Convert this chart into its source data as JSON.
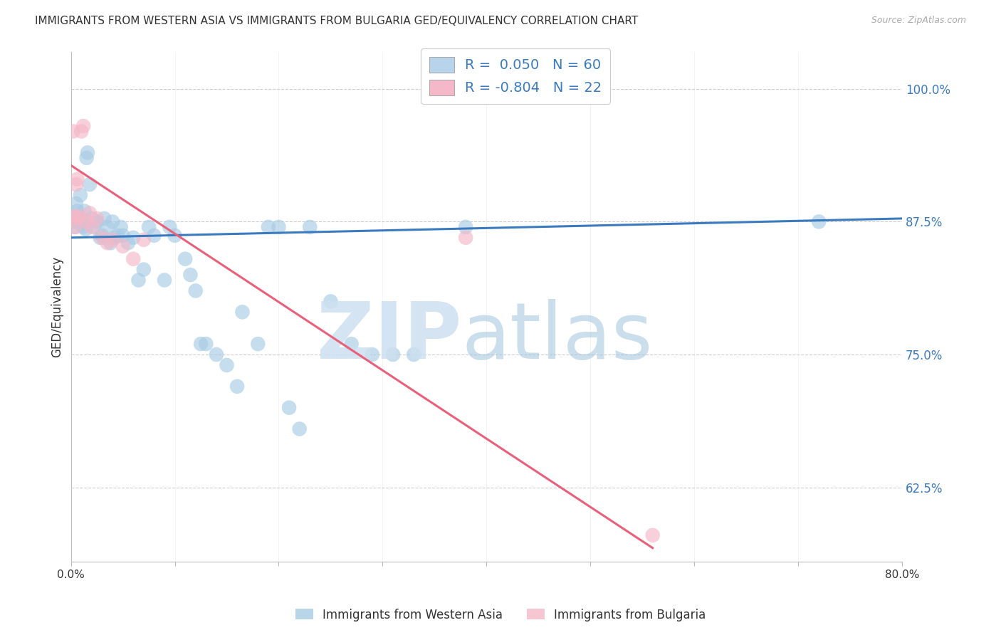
{
  "title": "IMMIGRANTS FROM WESTERN ASIA VS IMMIGRANTS FROM BULGARIA GED/EQUIVALENCY CORRELATION CHART",
  "source": "Source: ZipAtlas.com",
  "ylabel": "GED/Equivalency",
  "ytick_labels": [
    "100.0%",
    "87.5%",
    "75.0%",
    "62.5%"
  ],
  "ytick_values": [
    1.0,
    0.875,
    0.75,
    0.625
  ],
  "xmin": 0.0,
  "xmax": 0.8,
  "ymin": 0.555,
  "ymax": 1.035,
  "blue_color": "#a8cce4",
  "pink_color": "#f4b8c8",
  "blue_line_color": "#3a7abf",
  "pink_line_color": "#e8607a",
  "blue_label": "Immigrants from Western Asia",
  "pink_label": "Immigrants from Bulgaria",
  "blue_dots_x": [
    0.002,
    0.003,
    0.004,
    0.005,
    0.006,
    0.007,
    0.008,
    0.009,
    0.01,
    0.011,
    0.012,
    0.013,
    0.014,
    0.015,
    0.016,
    0.018,
    0.02,
    0.022,
    0.025,
    0.028,
    0.03,
    0.032,
    0.035,
    0.038,
    0.04,
    0.042,
    0.045,
    0.048,
    0.05,
    0.055,
    0.06,
    0.065,
    0.07,
    0.075,
    0.08,
    0.09,
    0.095,
    0.1,
    0.11,
    0.115,
    0.12,
    0.125,
    0.13,
    0.14,
    0.15,
    0.16,
    0.165,
    0.18,
    0.19,
    0.2,
    0.21,
    0.22,
    0.23,
    0.25,
    0.27,
    0.29,
    0.31,
    0.33,
    0.38,
    0.72
  ],
  "blue_dots_y": [
    0.88,
    0.875,
    0.87,
    0.892,
    0.885,
    0.875,
    0.88,
    0.9,
    0.872,
    0.875,
    0.87,
    0.885,
    0.868,
    0.935,
    0.94,
    0.91,
    0.878,
    0.87,
    0.875,
    0.86,
    0.862,
    0.878,
    0.87,
    0.855,
    0.875,
    0.86,
    0.862,
    0.87,
    0.862,
    0.855,
    0.86,
    0.82,
    0.83,
    0.87,
    0.862,
    0.82,
    0.87,
    0.862,
    0.84,
    0.825,
    0.81,
    0.76,
    0.76,
    0.75,
    0.74,
    0.72,
    0.79,
    0.76,
    0.87,
    0.87,
    0.7,
    0.68,
    0.87,
    0.8,
    0.76,
    0.75,
    0.75,
    0.75,
    0.87,
    0.875
  ],
  "pink_dots_x": [
    0.001,
    0.002,
    0.003,
    0.004,
    0.005,
    0.006,
    0.007,
    0.008,
    0.01,
    0.012,
    0.015,
    0.018,
    0.02,
    0.025,
    0.03,
    0.035,
    0.04,
    0.05,
    0.06,
    0.07,
    0.38,
    0.56
  ],
  "pink_dots_y": [
    0.878,
    0.96,
    0.88,
    0.87,
    0.91,
    0.915,
    0.88,
    0.878,
    0.96,
    0.965,
    0.875,
    0.883,
    0.87,
    0.878,
    0.86,
    0.855,
    0.858,
    0.852,
    0.84,
    0.858,
    0.86,
    0.58
  ],
  "blue_trend_x": [
    0.0,
    0.8
  ],
  "blue_trend_y": [
    0.86,
    0.878
  ],
  "pink_trend_x": [
    0.0,
    0.56
  ],
  "pink_trend_y": [
    0.928,
    0.568
  ]
}
